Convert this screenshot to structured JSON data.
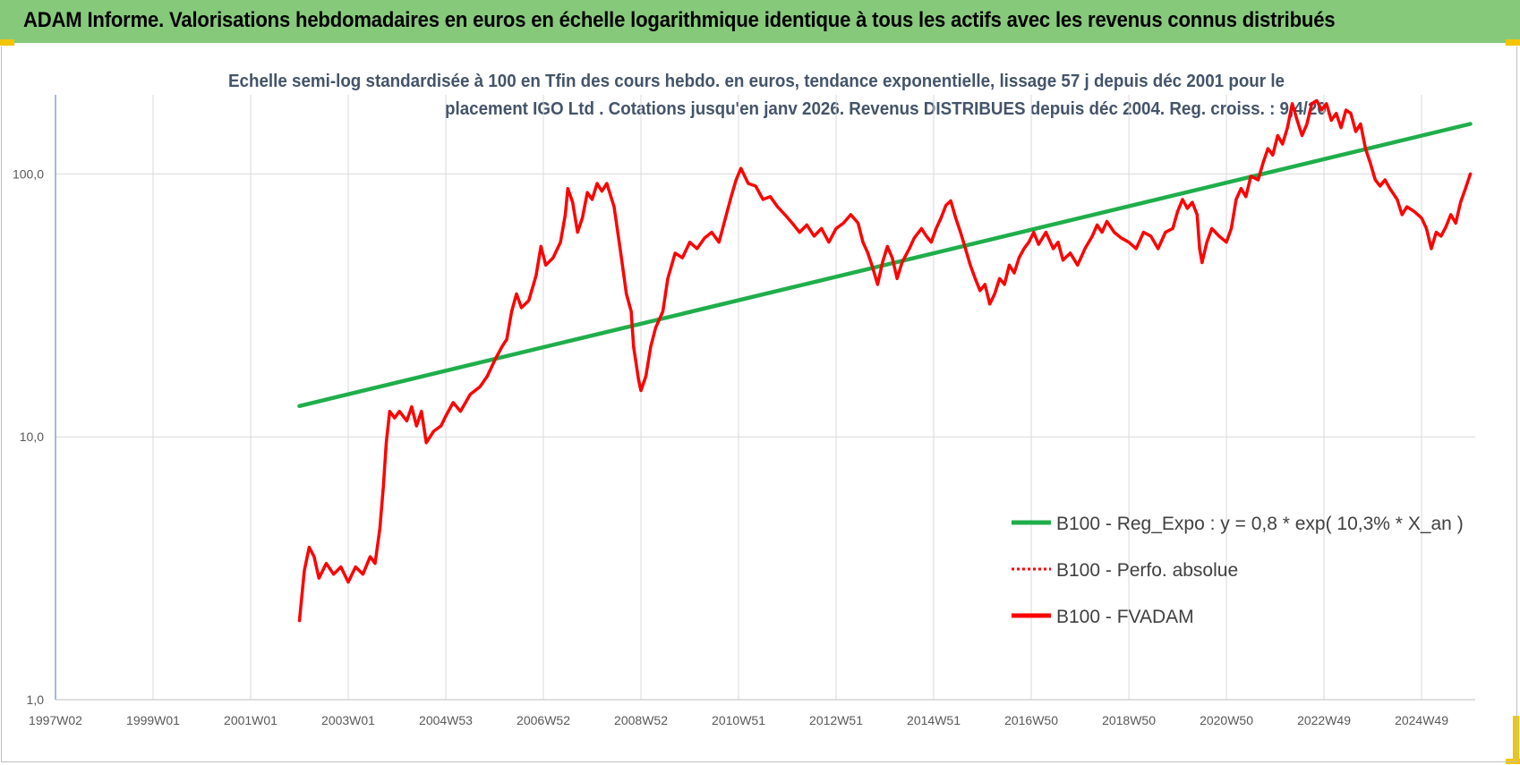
{
  "banner": {
    "title": "ADAM Informe. Valorisations hebdomadaires en euros en échelle logarithmique identique à tous les actifs avec les revenus connus distribués",
    "color": "#86c97b"
  },
  "chart_data": {
    "type": "line",
    "title_lines": [
      "Echelle semi-log standardisée à 100 en Tfin des cours hebdo. en euros, tendance exponentielle, lissage 57 j depuis déc 2001 pour le",
      "placement IGO Ltd . Cotations jusqu'en janv 2026. Revenus DISTRIBUES depuis déc 2004. Reg. croiss. : 9,4/20."
    ],
    "y_scale": "log",
    "ylim": [
      1,
      200
    ],
    "y_ticks": [
      {
        "value": 1,
        "label": "1,0"
      },
      {
        "value": 10,
        "label": "10,0"
      },
      {
        "value": 100,
        "label": "100,0"
      }
    ],
    "xlim": [
      1997.0,
      2026.1
    ],
    "x_ticks": [
      {
        "value": 1997.0,
        "label": "1997W02"
      },
      {
        "value": 1999.0,
        "label": "1999W01"
      },
      {
        "value": 2001.0,
        "label": "2001W01"
      },
      {
        "value": 2003.0,
        "label": "2003W01"
      },
      {
        "value": 2005.0,
        "label": "2004W53"
      },
      {
        "value": 2007.0,
        "label": "2006W52"
      },
      {
        "value": 2009.0,
        "label": "2008W52"
      },
      {
        "value": 2011.0,
        "label": "2010W51"
      },
      {
        "value": 2013.0,
        "label": "2012W51"
      },
      {
        "value": 2015.0,
        "label": "2014W51"
      },
      {
        "value": 2017.0,
        "label": "2016W50"
      },
      {
        "value": 2019.0,
        "label": "2018W50"
      },
      {
        "value": 2021.0,
        "label": "2020W50"
      },
      {
        "value": 2023.0,
        "label": "2022W49"
      },
      {
        "value": 2025.0,
        "label": "2024W49"
      }
    ],
    "legend_position": "bottom-right",
    "series": [
      {
        "name": "B100 - Reg_Expo : y = 0,8 * exp( 10,3% *  X_an )",
        "color": "#1fae4b",
        "style": "solid",
        "points": [
          [
            2002.0,
            13.1
          ],
          [
            2026.0,
            155
          ]
        ]
      },
      {
        "name": "B100 - Perfo. absolue",
        "color": "#ff0000",
        "style": "dotted",
        "points": []
      },
      {
        "name": "B100 - FVADAM",
        "color": "#ff0000",
        "style": "solid",
        "points": [
          [
            2002.0,
            2.0
          ],
          [
            2002.1,
            3.1
          ],
          [
            2002.2,
            3.8
          ],
          [
            2002.3,
            3.5
          ],
          [
            2002.4,
            2.9
          ],
          [
            2002.55,
            3.3
          ],
          [
            2002.7,
            3.0
          ],
          [
            2002.85,
            3.2
          ],
          [
            2003.0,
            2.8
          ],
          [
            2003.15,
            3.2
          ],
          [
            2003.3,
            3.0
          ],
          [
            2003.45,
            3.5
          ],
          [
            2003.55,
            3.3
          ],
          [
            2003.65,
            4.5
          ],
          [
            2003.72,
            6.5
          ],
          [
            2003.78,
            9.5
          ],
          [
            2003.85,
            12.5
          ],
          [
            2003.95,
            11.8
          ],
          [
            2004.05,
            12.5
          ],
          [
            2004.2,
            11.5
          ],
          [
            2004.3,
            13.0
          ],
          [
            2004.4,
            11.0
          ],
          [
            2004.5,
            12.5
          ],
          [
            2004.6,
            9.5
          ],
          [
            2004.75,
            10.5
          ],
          [
            2004.9,
            11.0
          ],
          [
            2005.0,
            12.0
          ],
          [
            2005.15,
            13.5
          ],
          [
            2005.3,
            12.5
          ],
          [
            2005.5,
            14.5
          ],
          [
            2005.7,
            15.5
          ],
          [
            2005.85,
            17.0
          ],
          [
            2006.0,
            19.5
          ],
          [
            2006.15,
            22.0
          ],
          [
            2006.25,
            23.5
          ],
          [
            2006.35,
            30.0
          ],
          [
            2006.45,
            35.0
          ],
          [
            2006.55,
            31.0
          ],
          [
            2006.7,
            33.0
          ],
          [
            2006.85,
            41.0
          ],
          [
            2006.95,
            53.0
          ],
          [
            2007.05,
            45.0
          ],
          [
            2007.2,
            48.0
          ],
          [
            2007.35,
            55.0
          ],
          [
            2007.45,
            70.0
          ],
          [
            2007.5,
            88.0
          ],
          [
            2007.6,
            78.0
          ],
          [
            2007.7,
            60.0
          ],
          [
            2007.8,
            68.0
          ],
          [
            2007.9,
            85.0
          ],
          [
            2008.0,
            80.0
          ],
          [
            2008.1,
            92.0
          ],
          [
            2008.2,
            86.0
          ],
          [
            2008.3,
            92.0
          ],
          [
            2008.45,
            75.0
          ],
          [
            2008.6,
            48.0
          ],
          [
            2008.7,
            35.0
          ],
          [
            2008.8,
            30.0
          ],
          [
            2008.85,
            22.0
          ],
          [
            2008.95,
            16.5
          ],
          [
            2009.0,
            15.0
          ],
          [
            2009.1,
            17.0
          ],
          [
            2009.2,
            22.0
          ],
          [
            2009.3,
            26.0
          ],
          [
            2009.45,
            30.0
          ],
          [
            2009.55,
            40.0
          ],
          [
            2009.7,
            50.0
          ],
          [
            2009.85,
            48.0
          ],
          [
            2010.0,
            55.0
          ],
          [
            2010.15,
            52.0
          ],
          [
            2010.3,
            57.0
          ],
          [
            2010.45,
            60.0
          ],
          [
            2010.6,
            55.0
          ],
          [
            2010.75,
            70.0
          ],
          [
            2010.85,
            82.0
          ],
          [
            2010.95,
            95.0
          ],
          [
            2011.05,
            105.0
          ],
          [
            2011.2,
            92.0
          ],
          [
            2011.35,
            90.0
          ],
          [
            2011.5,
            80.0
          ],
          [
            2011.65,
            82.0
          ],
          [
            2011.8,
            75.0
          ],
          [
            2011.95,
            70.0
          ],
          [
            2012.1,
            65.0
          ],
          [
            2012.25,
            60.0
          ],
          [
            2012.4,
            64.0
          ],
          [
            2012.55,
            58.0
          ],
          [
            2012.7,
            62.0
          ],
          [
            2012.85,
            55.0
          ],
          [
            2013.0,
            62.0
          ],
          [
            2013.15,
            65.0
          ],
          [
            2013.3,
            70.0
          ],
          [
            2013.45,
            65.0
          ],
          [
            2013.55,
            55.0
          ],
          [
            2013.65,
            50.0
          ],
          [
            2013.75,
            44.0
          ],
          [
            2013.85,
            38.0
          ],
          [
            2013.95,
            46.0
          ],
          [
            2014.05,
            53.0
          ],
          [
            2014.15,
            48.0
          ],
          [
            2014.25,
            40.0
          ],
          [
            2014.35,
            46.0
          ],
          [
            2014.5,
            52.0
          ],
          [
            2014.6,
            57.0
          ],
          [
            2014.75,
            62.0
          ],
          [
            2014.85,
            58.0
          ],
          [
            2014.95,
            55.0
          ],
          [
            2015.05,
            62.0
          ],
          [
            2015.15,
            68.0
          ],
          [
            2015.25,
            76.0
          ],
          [
            2015.35,
            79.0
          ],
          [
            2015.45,
            68.0
          ],
          [
            2015.55,
            60.0
          ],
          [
            2015.65,
            52.0
          ],
          [
            2015.75,
            45.0
          ],
          [
            2015.85,
            40.0
          ],
          [
            2015.95,
            36.0
          ],
          [
            2016.05,
            38.0
          ],
          [
            2016.15,
            32.0
          ],
          [
            2016.25,
            35.0
          ],
          [
            2016.35,
            40.0
          ],
          [
            2016.45,
            38.0
          ],
          [
            2016.55,
            45.0
          ],
          [
            2016.65,
            42.0
          ],
          [
            2016.75,
            48.0
          ],
          [
            2016.85,
            52.0
          ],
          [
            2016.95,
            55.0
          ],
          [
            2017.05,
            60.0
          ],
          [
            2017.15,
            54.0
          ],
          [
            2017.3,
            60.0
          ],
          [
            2017.45,
            52.0
          ],
          [
            2017.55,
            55.0
          ],
          [
            2017.65,
            47.0
          ],
          [
            2017.8,
            50.0
          ],
          [
            2017.95,
            45.0
          ],
          [
            2018.1,
            52.0
          ],
          [
            2018.25,
            58.0
          ],
          [
            2018.35,
            64.0
          ],
          [
            2018.45,
            60.0
          ],
          [
            2018.55,
            66.0
          ],
          [
            2018.7,
            60.0
          ],
          [
            2018.85,
            57.0
          ],
          [
            2019.0,
            55.0
          ],
          [
            2019.15,
            52.0
          ],
          [
            2019.3,
            60.0
          ],
          [
            2019.45,
            58.0
          ],
          [
            2019.6,
            52.0
          ],
          [
            2019.75,
            60.0
          ],
          [
            2019.9,
            62.0
          ],
          [
            2020.0,
            72.0
          ],
          [
            2020.1,
            80.0
          ],
          [
            2020.2,
            74.0
          ],
          [
            2020.3,
            78.0
          ],
          [
            2020.4,
            70.0
          ],
          [
            2020.45,
            52.0
          ],
          [
            2020.5,
            46.0
          ],
          [
            2020.6,
            55.0
          ],
          [
            2020.7,
            62.0
          ],
          [
            2020.85,
            58.0
          ],
          [
            2021.0,
            55.0
          ],
          [
            2021.1,
            62.0
          ],
          [
            2021.2,
            80.0
          ],
          [
            2021.3,
            88.0
          ],
          [
            2021.4,
            82.0
          ],
          [
            2021.5,
            98.0
          ],
          [
            2021.65,
            95.0
          ],
          [
            2021.75,
            110.0
          ],
          [
            2021.85,
            125.0
          ],
          [
            2021.95,
            118.0
          ],
          [
            2022.05,
            140.0
          ],
          [
            2022.15,
            130.0
          ],
          [
            2022.25,
            150.0
          ],
          [
            2022.35,
            185.0
          ],
          [
            2022.45,
            160.0
          ],
          [
            2022.55,
            140.0
          ],
          [
            2022.65,
            155.0
          ],
          [
            2022.75,
            185.0
          ],
          [
            2022.85,
            190.0
          ],
          [
            2022.95,
            175.0
          ],
          [
            2023.05,
            185.0
          ],
          [
            2023.15,
            160.0
          ],
          [
            2023.25,
            170.0
          ],
          [
            2023.35,
            150.0
          ],
          [
            2023.45,
            175.0
          ],
          [
            2023.55,
            170.0
          ],
          [
            2023.65,
            145.0
          ],
          [
            2023.75,
            155.0
          ],
          [
            2023.85,
            125.0
          ],
          [
            2023.95,
            110.0
          ],
          [
            2024.05,
            95.0
          ],
          [
            2024.15,
            90.0
          ],
          [
            2024.25,
            95.0
          ],
          [
            2024.35,
            88.0
          ],
          [
            2024.5,
            80.0
          ],
          [
            2024.6,
            70.0
          ],
          [
            2024.7,
            75.0
          ],
          [
            2024.85,
            72.0
          ],
          [
            2025.0,
            68.0
          ],
          [
            2025.1,
            62.0
          ],
          [
            2025.2,
            52.0
          ],
          [
            2025.3,
            60.0
          ],
          [
            2025.4,
            58.0
          ],
          [
            2025.5,
            63.0
          ],
          [
            2025.6,
            70.0
          ],
          [
            2025.7,
            65.0
          ],
          [
            2025.8,
            78.0
          ],
          [
            2025.9,
            88.0
          ],
          [
            2026.0,
            100.0
          ]
        ]
      }
    ]
  }
}
